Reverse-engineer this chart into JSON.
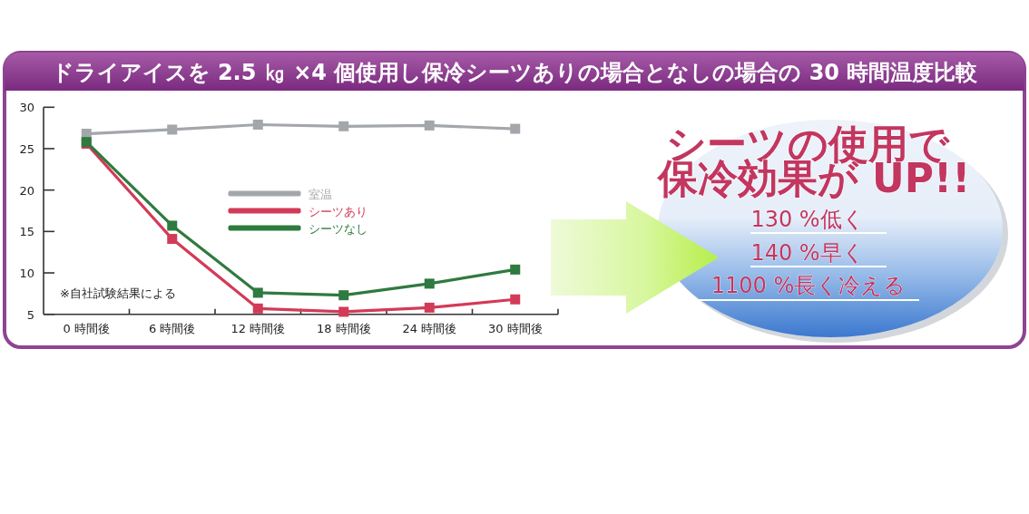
{
  "chart_data": {
    "type": "line",
    "title": "ドライアイスを 2.5 ㎏ ×4 個使用し保冷シーツありの場合となしの場合の 30 時間温度比較",
    "categories": [
      "0 時間後",
      "6 時間後",
      "12 時間後",
      "18 時間後",
      "24 時間後",
      "30 時間後"
    ],
    "series": [
      {
        "name": "室温",
        "color": "#a3a7ab",
        "values": [
          26.8,
          27.3,
          27.9,
          27.7,
          27.8,
          27.4
        ]
      },
      {
        "name": "シーツあり",
        "color": "#d23b57",
        "values": [
          25.6,
          14.1,
          5.7,
          5.3,
          5.8,
          6.8
        ]
      },
      {
        "name": "シーツなし",
        "color": "#2f7a3f",
        "values": [
          25.8,
          15.7,
          7.6,
          7.3,
          8.7,
          10.4
        ]
      }
    ],
    "ylim": [
      5,
      30
    ],
    "yticks": [
      5,
      10,
      15,
      20,
      25,
      30
    ],
    "marker": "square",
    "legend": "center",
    "annotations": [
      "※自社試験結果による",
      "シーツの使用で",
      "保冷効果が UP!!",
      "130 %低く",
      "140 %早く",
      "1100 %長く冷える"
    ]
  }
}
